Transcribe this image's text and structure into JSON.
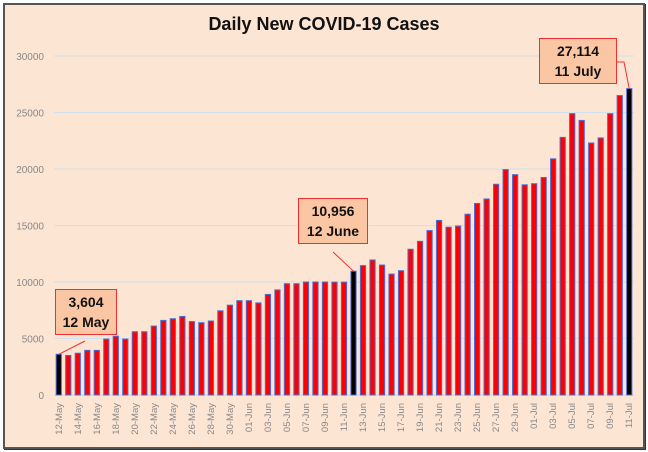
{
  "chart_data": {
    "type": "bar",
    "title": "Daily New COVID-19 Cases",
    "xlabel": "",
    "ylabel": "",
    "ylim": [
      0,
      30000
    ],
    "yticks": [
      "0",
      "5000",
      "10000",
      "15000",
      "20000",
      "25000",
      "30000"
    ],
    "grid": true,
    "colors": {
      "bar": "#ff0000",
      "bar_edge": "#4a6fd8",
      "highlight": "#000000",
      "grid": "#cfe0ee"
    },
    "categories": [
      "12-May",
      "13-May",
      "14-May",
      "15-May",
      "16-May",
      "17-May",
      "18-May",
      "19-May",
      "20-May",
      "21-May",
      "22-May",
      "23-May",
      "24-May",
      "25-May",
      "26-May",
      "27-May",
      "28-May",
      "29-May",
      "30-May",
      "31-May",
      "01-Jun",
      "02-Jun",
      "03-Jun",
      "04-Jun",
      "05-Jun",
      "06-Jun",
      "07-Jun",
      "08-Jun",
      "09-Jun",
      "10-Jun",
      "11-Jun",
      "12-Jun",
      "13-Jun",
      "14-Jun",
      "15-Jun",
      "16-Jun",
      "17-Jun",
      "18-Jun",
      "19-Jun",
      "20-Jun",
      "21-Jun",
      "22-Jun",
      "23-Jun",
      "24-Jun",
      "25-Jun",
      "26-Jun",
      "27-Jun",
      "28-Jun",
      "29-Jun",
      "30-Jun",
      "01-Jul",
      "02-Jul",
      "03-Jul",
      "04-Jul",
      "05-Jul",
      "06-Jul",
      "07-Jul",
      "08-Jul",
      "09-Jul",
      "10-Jul",
      "11-Jul"
    ],
    "values": [
      3604,
      3500,
      3700,
      3950,
      3950,
      4950,
      5200,
      4950,
      5600,
      5600,
      6100,
      6600,
      6750,
      6950,
      6500,
      6400,
      6550,
      7450,
      7950,
      8350,
      8350,
      8150,
      8900,
      9300,
      9850,
      9850,
      10000,
      10000,
      10000,
      9990,
      9990,
      10956,
      11450,
      11950,
      11500,
      10700,
      11000,
      12900,
      13600,
      14550,
      15450,
      14850,
      14950,
      16000,
      16950,
      17350,
      18650,
      19950,
      19500,
      18600,
      18700,
      19250,
      20900,
      22800,
      24900,
      24300,
      22300,
      22750,
      24900,
      26500,
      27114
    ],
    "highlight_indices": [
      0,
      31,
      60
    ],
    "annotations": [
      {
        "value": "3,604",
        "label": "12 May"
      },
      {
        "value": "10,956",
        "label": "12 June"
      },
      {
        "value": "27,114",
        "label": "11 July"
      }
    ]
  }
}
